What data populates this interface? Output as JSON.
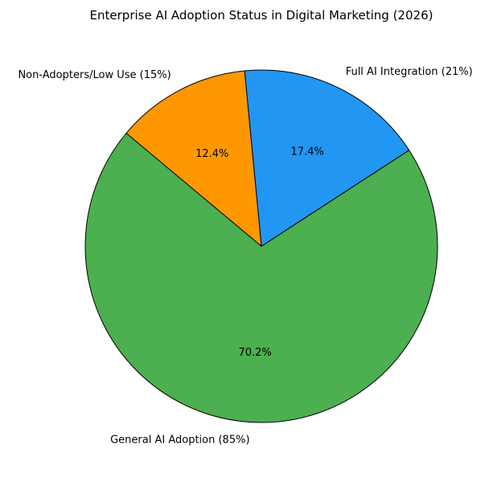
{
  "chart_data": {
    "type": "pie",
    "title": "Enterprise AI Adoption Status in Digital Marketing (2026)",
    "start_angle_deg": 33,
    "direction": "counterclockwise",
    "slices": [
      {
        "label": "Full AI Integration (21%)",
        "value": 21,
        "pct_label": "17.4%",
        "color": "#2196F3"
      },
      {
        "label": "Non-Adopters/Low Use (15%)",
        "value": 15,
        "pct_label": "12.4%",
        "color": "#FF9800"
      },
      {
        "label": "General AI Adoption (85%)",
        "value": 85,
        "pct_label": "70.2%",
        "color": "#4CAF50"
      }
    ]
  }
}
